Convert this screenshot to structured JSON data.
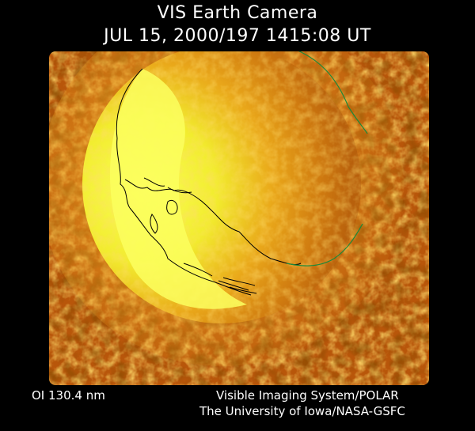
{
  "title": {
    "line1": "VIS Earth Camera",
    "line2": "JUL 15, 2000/197 1415:08 UT"
  },
  "footer": {
    "wavelength": "OI  130.4 nm",
    "credit_line1": "Visible Imaging System/POLAR",
    "credit_line2": "The University of Iowa/NASA-GSFC"
  },
  "colors": {
    "background": "#000000",
    "text": "#ffffff",
    "dayglow": "#f6f43a",
    "nightside": "#b8560a",
    "coastline": "#000000",
    "grid": "#1c8a3a"
  }
}
